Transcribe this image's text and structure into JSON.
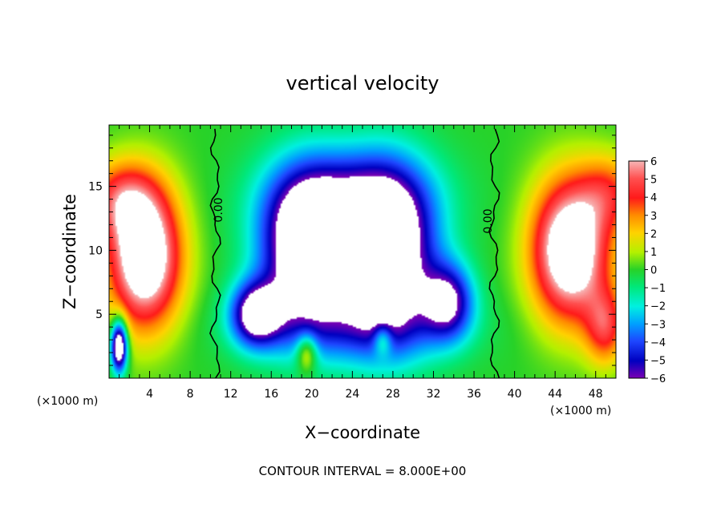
{
  "chart_data": {
    "type": "heatmap",
    "title": "vertical velocity",
    "xlabel": "X−coordinate",
    "ylabel": "Z−coordinate",
    "x_units": "(×1000 m)",
    "x_ticks": [
      "4",
      "8",
      "12",
      "16",
      "20",
      "24",
      "28",
      "32",
      "36",
      "40",
      "44",
      "48"
    ],
    "y_ticks": [
      "5",
      "10",
      "15"
    ],
    "xlim": [
      0,
      50
    ],
    "ylim": [
      0,
      19.8
    ],
    "colorbar": {
      "ticks": [
        "6",
        "5",
        "4",
        "3",
        "2",
        "1",
        "0",
        "−1",
        "−2",
        "−3",
        "−4",
        "−5",
        "−6"
      ],
      "min": -6,
      "max": 6
    },
    "zero_contour_label": "0.00",
    "contour_interval_note": "CONTOUR INTERVAL = 8.000E+00",
    "field_features": [
      {
        "kind": "updraft",
        "x_center": 3.5,
        "z_center": 9.0,
        "peak": 6
      },
      {
        "kind": "updraft",
        "x_center": 45.0,
        "z_center": 9.5,
        "peak": 6
      },
      {
        "kind": "downdraft",
        "x_center": 19.5,
        "z_center": 9.5,
        "peak": -6
      },
      {
        "kind": "downdraft",
        "x_center": 28.0,
        "z_center": 9.0,
        "peak": -6
      },
      {
        "kind": "downdraft",
        "x_center": 14.5,
        "z_center": 5.0,
        "peak": -6
      }
    ],
    "zero_contours_x": [
      10.5,
      38.0
    ]
  }
}
